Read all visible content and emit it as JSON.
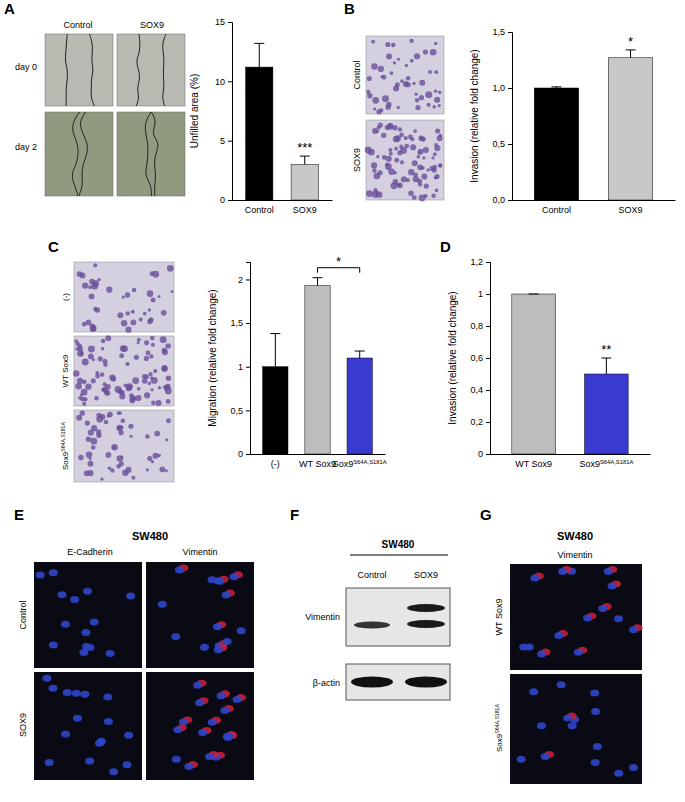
{
  "chart_data": [
    {
      "type": "bar",
      "y_label": "Unfilled area (%)",
      "categories": [
        "Control",
        "SOX9"
      ],
      "values": [
        11.2,
        3.0
      ],
      "errors": [
        2.0,
        0.7
      ],
      "colors": [
        "#000000",
        "#c8c8c8"
      ],
      "ylim": [
        0,
        15
      ],
      "yticks": [
        0,
        5,
        10,
        15
      ],
      "significance": [
        {
          "label": "***",
          "categories": [
            "SOX9"
          ]
        }
      ]
    },
    {
      "type": "bar",
      "y_label": "Invasion (relative fold change)",
      "categories": [
        "Control",
        "SOX9"
      ],
      "values": [
        1.0,
        1.27
      ],
      "errors": [
        0.01,
        0.07
      ],
      "colors": [
        "#000000",
        "#c8c8c8"
      ],
      "ylim": [
        0,
        1.5
      ],
      "yticks": [
        {
          "value": 0,
          "label": "0,0"
        },
        {
          "value": 0.5,
          "label": "0,5"
        },
        {
          "value": 1,
          "label": "1,0"
        },
        {
          "value": 1.5,
          "label": "1,5"
        }
      ],
      "significance": [
        {
          "label": "*",
          "categories": [
            "SOX9"
          ]
        }
      ]
    },
    {
      "type": "bar",
      "y_label": "Migration (relative fold change)",
      "categories": [
        "(-)",
        "WT Sox9",
        "Sox9 S64A,S181A"
      ],
      "values": [
        1.0,
        1.93,
        1.1
      ],
      "errors": [
        0.38,
        0.09,
        0.08
      ],
      "colors": [
        "#000000",
        "#bdbdbd",
        "#3a3ad0"
      ],
      "ylim": [
        0,
        2.2
      ],
      "yticks": [
        0,
        {
          "value": 0.5,
          "label": "0,5"
        },
        1,
        {
          "value": 1.5,
          "label": "1,5"
        },
        2
      ],
      "significance": [
        {
          "label": "*",
          "categories": [
            "WT Sox9",
            "Sox9 S64A,S181A"
          ]
        }
      ]
    },
    {
      "type": "bar",
      "y_label": "Invasion (relative fold change)",
      "categories": [
        "WT Sox9",
        "Sox9 S64A,S181A"
      ],
      "values": [
        1.0,
        0.5
      ],
      "errors": [
        0,
        0.1
      ],
      "colors": [
        "#bdbdbd",
        "#3a3ad0"
      ],
      "ylim": [
        0,
        1.2
      ],
      "yticks": [
        0,
        {
          "value": 0.2,
          "label": "0,2"
        },
        {
          "value": 0.4,
          "label": "0,4"
        },
        {
          "value": 0.6,
          "label": "0,6"
        },
        {
          "value": 0.8,
          "label": "0,8"
        },
        1,
        {
          "value": 1.2,
          "label": "1,2"
        }
      ],
      "significance": [
        {
          "label": "**",
          "categories": [
            "Sox9 S64A,S181A"
          ]
        }
      ]
    }
  ],
  "figure": {
    "panel_letters": [
      "A",
      "B",
      "C",
      "D",
      "E",
      "F",
      "G"
    ],
    "a_images": {
      "columns": [
        "Control",
        "SOX9"
      ],
      "rows": [
        "day 0",
        "day 2"
      ]
    },
    "b_images": {
      "rows": [
        "Control",
        "SOX9"
      ]
    },
    "c_images": {
      "rows": [
        "(-)",
        "WT Sox9",
        "Sox9 S64A,S181A"
      ]
    },
    "e_images": {
      "cell_line": "SW480",
      "columns": [
        "E-Cadherin",
        "Vimentin"
      ],
      "rows": [
        "Control",
        "SOX9"
      ]
    },
    "f_blot": {
      "cell_line": "SW480",
      "lanes": [
        "Control",
        "SOX9"
      ],
      "proteins": [
        "Vimentin",
        "β-actin"
      ]
    },
    "g_images": {
      "cell_line": "SW480",
      "columns": [
        "Vimentin"
      ],
      "rows": [
        "WT Sox9",
        "Sox9 S64A,S181A"
      ]
    }
  }
}
